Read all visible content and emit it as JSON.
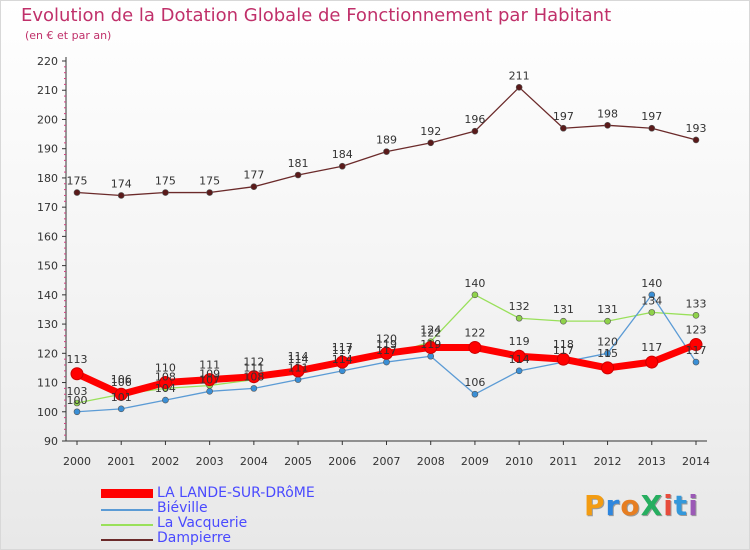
{
  "title": "Evolution de la Dotation Globale de Fonctionnement par Habitant",
  "subtitle": "(en € et par an)",
  "logo": {
    "text": "ProXiti",
    "colors": [
      "#f39c12",
      "#2e86de",
      "#e67e22",
      "#27ae60",
      "#e74c3c",
      "#3498db",
      "#9b59b6"
    ]
  },
  "chart_data": {
    "type": "line",
    "title": "Evolution de la Dotation Globale de Fonctionnement par Habitant",
    "subtitle": "(en € et par an)",
    "xlabel": "",
    "ylabel": "",
    "x": [
      2000,
      2001,
      2002,
      2003,
      2004,
      2005,
      2006,
      2007,
      2008,
      2009,
      2010,
      2011,
      2012,
      2013,
      2014
    ],
    "ylim": [
      90,
      220
    ],
    "yticks": [
      90,
      100,
      110,
      120,
      130,
      140,
      150,
      160,
      170,
      180,
      190,
      200,
      210,
      220
    ],
    "grid": false,
    "legend_position": "bottom-left",
    "series": [
      {
        "name": "LA LANDE-SUR-DRôME",
        "color": "#ff0000",
        "marker": "#ff0000",
        "values": [
          113,
          106,
          110,
          111,
          112,
          114,
          117,
          120,
          122,
          122,
          119,
          118,
          115,
          117,
          123
        ]
      },
      {
        "name": "Biéville",
        "color": "#5b9bd5",
        "marker": "#3a8fd6",
        "values": [
          100,
          101,
          104,
          107,
          108,
          111,
          114,
          117,
          119,
          106,
          114,
          117,
          120,
          140,
          117
        ]
      },
      {
        "name": "La Vacquerie",
        "color": "#99e05a",
        "marker": "#8fd24a",
        "values": [
          103,
          106,
          108,
          109,
          111,
          114,
          117,
          119,
          124,
          140,
          132,
          131,
          131,
          134,
          133
        ]
      },
      {
        "name": "Dampierre",
        "color": "#6b2a2a",
        "marker": "#5a1a1a",
        "values": [
          175,
          174,
          175,
          175,
          177,
          181,
          184,
          189,
          192,
          196,
          211,
          197,
          198,
          197,
          193
        ]
      }
    ]
  }
}
